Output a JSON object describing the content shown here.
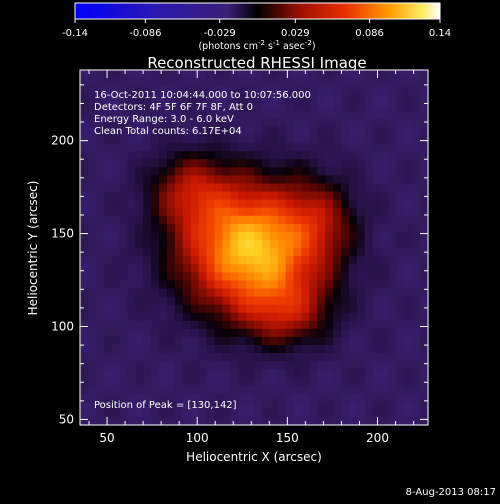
{
  "chart_data": {
    "type": "heatmap",
    "title": "Reconstructed RHESSI Image",
    "xlabel": "Heliocentric X (arcsec)",
    "ylabel": "Heliocentric Y (arcsec)",
    "xlim": [
      35,
      228
    ],
    "ylim": [
      47,
      238
    ],
    "xticks": [
      "50",
      "100",
      "150",
      "200"
    ],
    "xtick_values": [
      50,
      100,
      150,
      200
    ],
    "yticks": [
      "50",
      "100",
      "150",
      "200"
    ],
    "ytick_values": [
      50,
      100,
      150,
      200
    ],
    "colorbar": {
      "min": -0.14,
      "max": 0.14,
      "ticks": [
        "-0.14",
        "-0.086",
        "-0.029",
        "0.029",
        "0.086",
        "0.14"
      ],
      "tick_values": [
        -0.14,
        -0.086,
        -0.029,
        0.029,
        0.086,
        0.14
      ],
      "label_parts": [
        "(photons cm",
        "-2",
        " s",
        "-1",
        " asec",
        "-2",
        ")"
      ]
    },
    "annotations": [
      "16-Oct-2011 10:04:44.000 to 10:07:56.000",
      "Detectors: 4F 5F 6F 7F 8F, Att 0",
      "Energy Range: 3.0 - 6.0 keV",
      "Clean     Total counts: 6.17E+04"
    ],
    "peak_label": "Position of Peak = [130,142]",
    "peak": [
      130,
      142
    ],
    "sources": [
      {
        "x": 130,
        "y": 142,
        "amp": 0.142,
        "sx": 27,
        "sy": 24
      },
      {
        "x": 96,
        "y": 174,
        "amp": 0.05,
        "sx": 16,
        "sy": 14
      },
      {
        "x": 150,
        "y": 108,
        "amp": 0.045,
        "sx": 17,
        "sy": 13
      },
      {
        "x": 168,
        "y": 158,
        "amp": 0.035,
        "sx": 14,
        "sy": 16
      }
    ],
    "background": -0.028,
    "colors": {
      "low": "#0000ff",
      "mid_low": "#3a1f74",
      "zero": "#000000",
      "mid": "#c81e00",
      "high_mid": "#ff9a00",
      "high": "#ffffff"
    }
  },
  "footer_date": "8-Aug-2013 08:17"
}
